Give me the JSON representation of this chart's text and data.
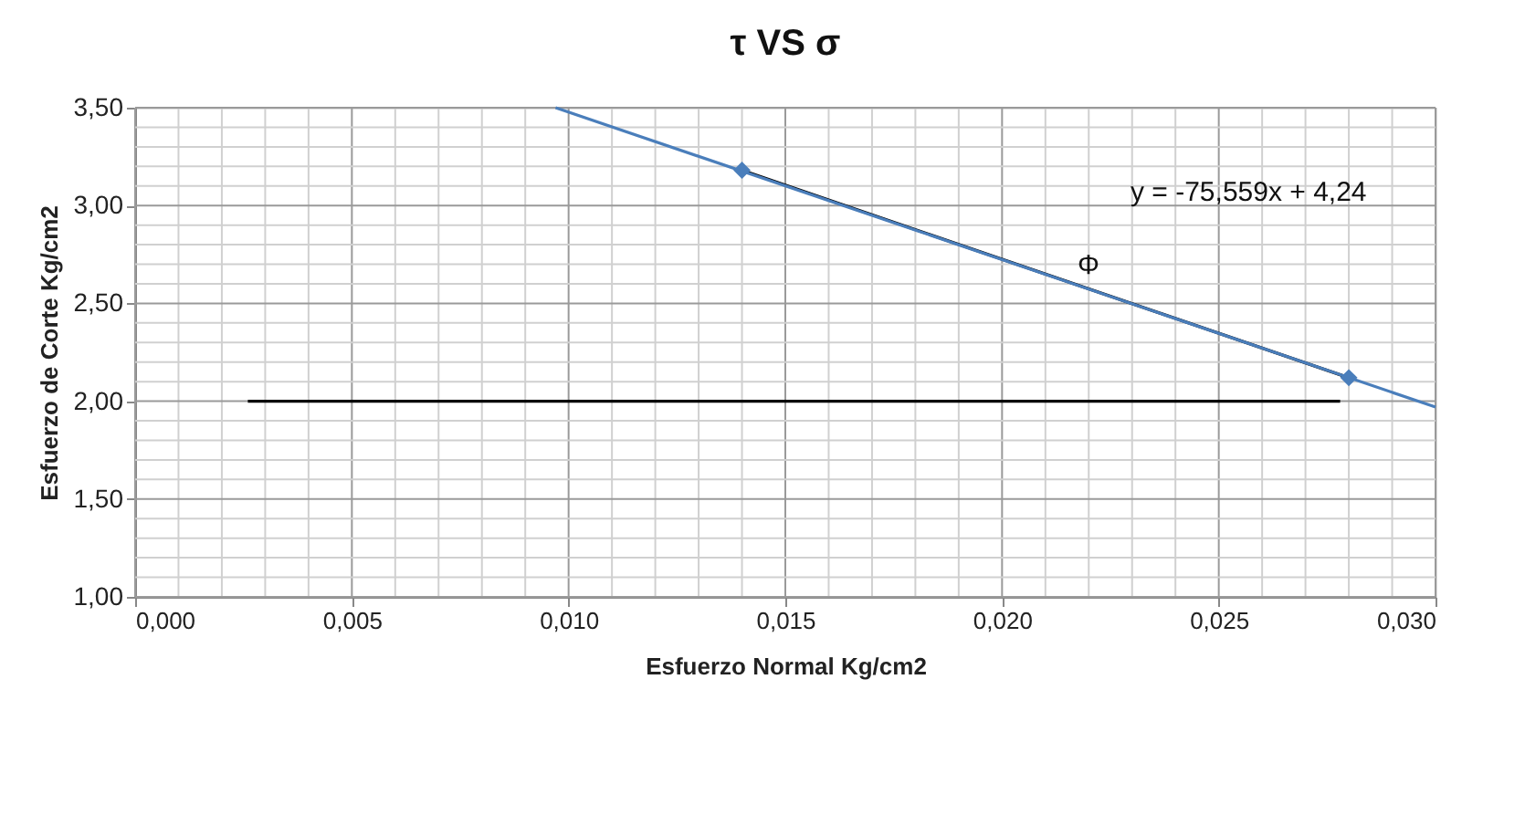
{
  "chart_data": {
    "type": "scatter",
    "title": "τ  VS  σ",
    "xlabel": "Esfuerzo Normal Kg/cm2",
    "ylabel": "Esfuerzo de Corte Kg/cm2",
    "series": [
      {
        "type": "line",
        "color": "#000000",
        "x": [
          0.0026,
          0.0278
        ],
        "values": [
          2.0,
          2.0
        ],
        "marker": "none"
      },
      {
        "type": "line",
        "color": "#000000",
        "x": [
          0.014,
          0.028
        ],
        "values": [
          3.18,
          2.12
        ],
        "marker": "none"
      },
      {
        "type": "line",
        "color": "#4a7ebb",
        "x": [
          0.0097,
          0.03
        ],
        "values": [
          3.5,
          1.97
        ],
        "marker": "none"
      },
      {
        "color": "#4a7ebb",
        "x": [
          0.014,
          0.028
        ],
        "values": [
          3.18,
          2.12
        ],
        "marker": "diamond"
      }
    ],
    "annotations": [
      "y = -75,559x + 4,24",
      "Φ"
    ],
    "xlim": [
      0,
      0.03
    ],
    "ylim": [
      1.0,
      3.5
    ],
    "xticks": [
      {
        "value": 0,
        "label": "0,000"
      },
      {
        "value": 0.001,
        "label": null
      },
      {
        "value": 0.002,
        "label": null
      },
      {
        "value": 0.003,
        "label": null
      },
      {
        "value": 0.004,
        "label": null
      },
      {
        "value": 0.005,
        "label": "0,005"
      },
      {
        "value": 0.006,
        "label": null
      },
      {
        "value": 0.007,
        "label": null
      },
      {
        "value": 0.008,
        "label": null
      },
      {
        "value": 0.009,
        "label": null
      },
      {
        "value": 0.01,
        "label": "0,010"
      },
      {
        "value": 0.011,
        "label": null
      },
      {
        "value": 0.012,
        "label": null
      },
      {
        "value": 0.013,
        "label": null
      },
      {
        "value": 0.014,
        "label": null
      },
      {
        "value": 0.015,
        "label": "0,015"
      },
      {
        "value": 0.016,
        "label": null
      },
      {
        "value": 0.017,
        "label": null
      },
      {
        "value": 0.018,
        "label": null
      },
      {
        "value": 0.019,
        "label": null
      },
      {
        "value": 0.02,
        "label": "0,020"
      },
      {
        "value": 0.021,
        "label": null
      },
      {
        "value": 0.022,
        "label": null
      },
      {
        "value": 0.023,
        "label": null
      },
      {
        "value": 0.024,
        "label": null
      },
      {
        "value": 0.025,
        "label": "0,025"
      },
      {
        "value": 0.026,
        "label": null
      },
      {
        "value": 0.027,
        "label": null
      },
      {
        "value": 0.028,
        "label": null
      },
      {
        "value": 0.029,
        "label": null
      },
      {
        "value": 0.03,
        "label": "0,030"
      }
    ],
    "yticks": [
      {
        "value": 1.0,
        "label": "1,00"
      },
      {
        "value": 1.1,
        "label": null
      },
      {
        "value": 1.2,
        "label": null
      },
      {
        "value": 1.3,
        "label": null
      },
      {
        "value": 1.4,
        "label": null
      },
      {
        "value": 1.5,
        "label": "1,50"
      },
      {
        "value": 1.6,
        "label": null
      },
      {
        "value": 1.7,
        "label": null
      },
      {
        "value": 1.8,
        "label": null
      },
      {
        "value": 1.9,
        "label": null
      },
      {
        "value": 2.0,
        "label": "2,00"
      },
      {
        "value": 2.1,
        "label": null
      },
      {
        "value": 2.2,
        "label": null
      },
      {
        "value": 2.3,
        "label": null
      },
      {
        "value": 2.4,
        "label": null
      },
      {
        "value": 2.5,
        "label": "2,50"
      },
      {
        "value": 2.6,
        "label": null
      },
      {
        "value": 2.7,
        "label": null
      },
      {
        "value": 2.8,
        "label": null
      },
      {
        "value": 2.9,
        "label": null
      },
      {
        "value": 3.0,
        "label": "3,00"
      },
      {
        "value": 3.1,
        "label": null
      },
      {
        "value": 3.2,
        "label": null
      },
      {
        "value": 3.3,
        "label": null
      },
      {
        "value": 3.4,
        "label": null
      },
      {
        "value": 3.5,
        "label": "3,50"
      }
    ],
    "grid": true
  }
}
